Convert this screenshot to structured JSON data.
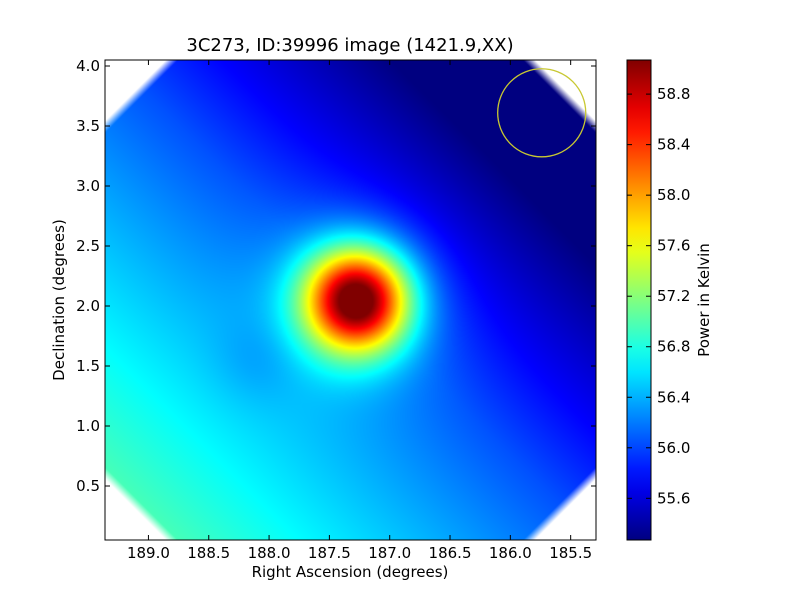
{
  "chart_data": {
    "type": "heatmap",
    "title": "3C273, ID:39996 image (1421.9,XX)",
    "xlabel": "Right Ascension (degrees)",
    "ylabel": "Declination (degrees)",
    "colorbar_label": "Power in Kelvin",
    "xlim": [
      189.36,
      185.29
    ],
    "ylim": [
      0.05,
      4.05
    ],
    "x_ticks": [
      189.0,
      188.5,
      188.0,
      187.5,
      187.0,
      186.5,
      186.0,
      185.5
    ],
    "x_tick_labels": [
      "189.0",
      "188.5",
      "188.0",
      "187.5",
      "187.0",
      "186.5",
      "186.0",
      "185.5"
    ],
    "y_ticks": [
      0.5,
      1.0,
      1.5,
      2.0,
      2.5,
      3.0,
      3.5,
      4.0
    ],
    "y_tick_labels": [
      "0.5",
      "1.0",
      "1.5",
      "2.0",
      "2.5",
      "3.0",
      "3.5",
      "4.0"
    ],
    "colorbar_range": [
      55.27,
      59.07
    ],
    "colorbar_ticks": [
      55.6,
      56.0,
      56.4,
      56.8,
      57.2,
      57.6,
      58.0,
      58.4,
      58.8
    ],
    "colorbar_tick_labels": [
      "55.6",
      "56.0",
      "56.4",
      "56.8",
      "57.2",
      "57.6",
      "58.0",
      "58.4",
      "58.8"
    ],
    "colormap": "jet",
    "source_peak": {
      "ra": 187.27,
      "dec": 2.05,
      "value": 59.05
    },
    "beam_circle": {
      "ra": 185.74,
      "dec": 3.61,
      "radius_deg": 0.365,
      "color": "#c8c832"
    },
    "grid": false
  }
}
